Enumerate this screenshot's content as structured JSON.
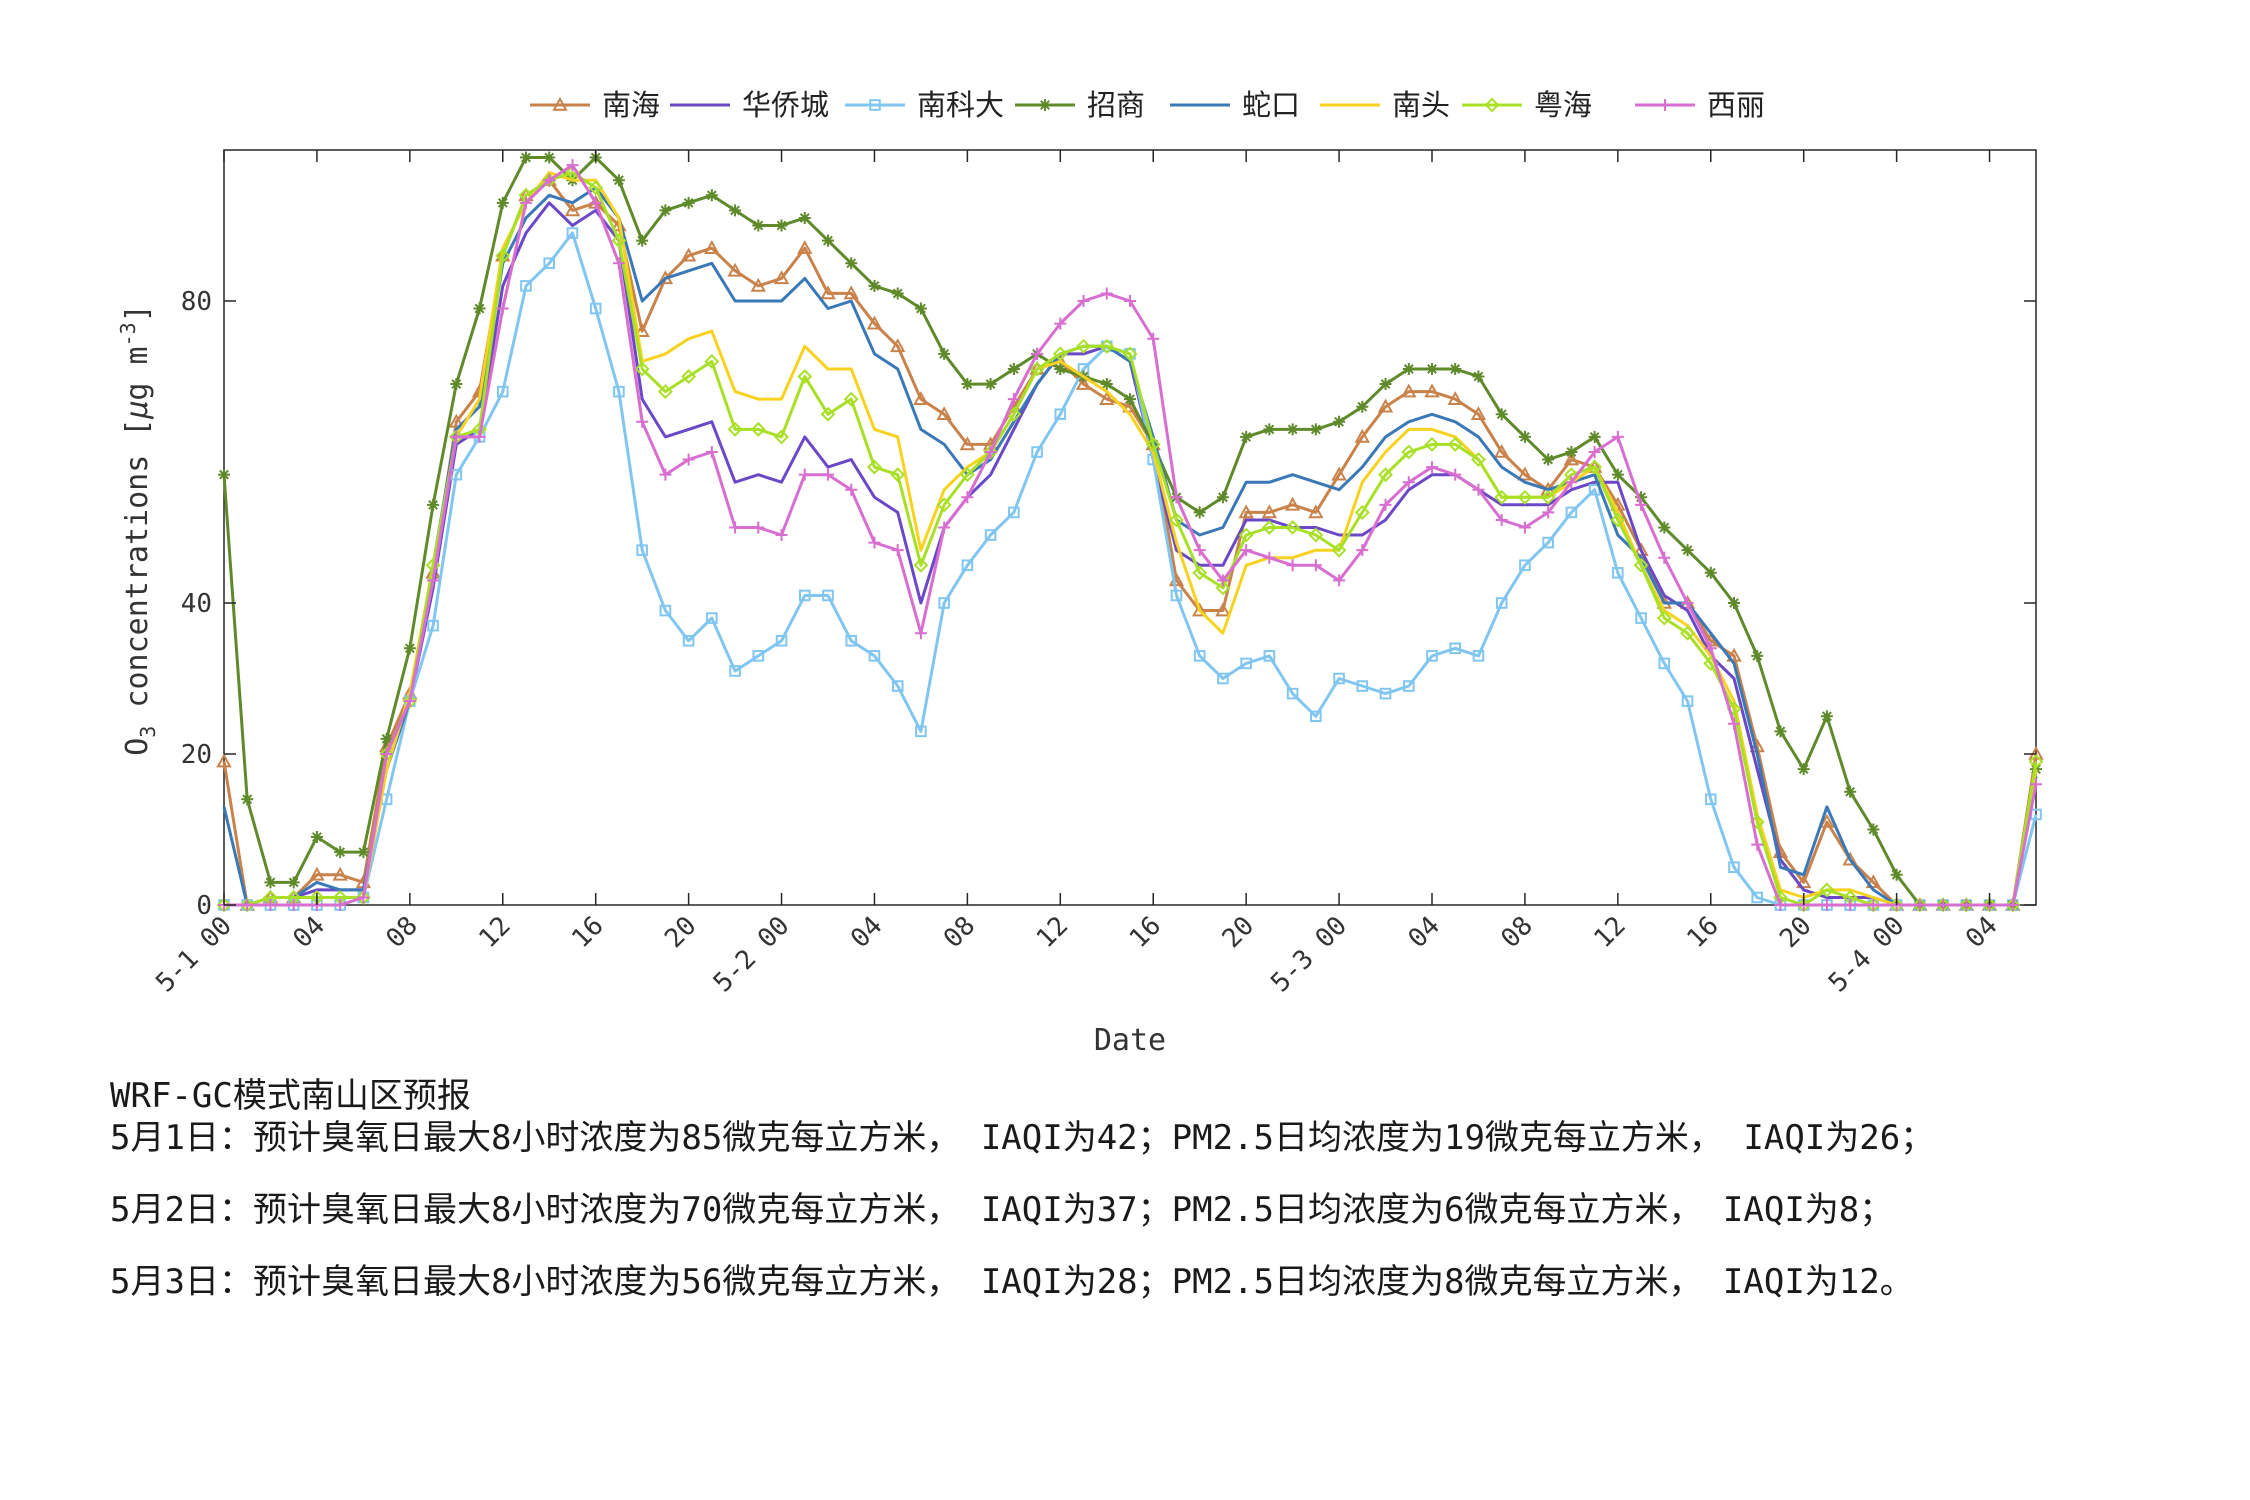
{
  "chart_data": {
    "type": "line",
    "ylabel": "O3 concentrations [μg m-3]",
    "ylabel_parts": {
      "o": "O",
      "sub3": "3",
      "text": " concentrations [",
      "mu": "μ",
      "g": "g m",
      "sup": "-3",
      "close": "]"
    },
    "xlabel": "Date",
    "ylim": [
      0,
      100
    ],
    "yticks": [
      0,
      20,
      40,
      80
    ],
    "xlim": [
      0,
      78
    ],
    "xticks": [
      {
        "x": 0,
        "label": "5-1 00"
      },
      {
        "x": 4,
        "label": "04"
      },
      {
        "x": 8,
        "label": "08"
      },
      {
        "x": 12,
        "label": "12"
      },
      {
        "x": 16,
        "label": "16"
      },
      {
        "x": 20,
        "label": "20"
      },
      {
        "x": 24,
        "label": "5-2 00"
      },
      {
        "x": 28,
        "label": "04"
      },
      {
        "x": 32,
        "label": "08"
      },
      {
        "x": 36,
        "label": "12"
      },
      {
        "x": 40,
        "label": "16"
      },
      {
        "x": 44,
        "label": "20"
      },
      {
        "x": 48,
        "label": "5-3 00"
      },
      {
        "x": 52,
        "label": "04"
      },
      {
        "x": 56,
        "label": "08"
      },
      {
        "x": 60,
        "label": "12"
      },
      {
        "x": 64,
        "label": "16"
      },
      {
        "x": 68,
        "label": "20"
      },
      {
        "x": 72,
        "label": "5-4 00"
      },
      {
        "x": 76,
        "label": "04"
      }
    ],
    "grid": false,
    "legend_position": "top-center",
    "series": [
      {
        "name": "南海",
        "color": "#c8824a",
        "marker": "triangle",
        "values": [
          19,
          0,
          1,
          1,
          4,
          4,
          3,
          21,
          28,
          44,
          64,
          68,
          86,
          94,
          96,
          92,
          93,
          90,
          76,
          83,
          86,
          87,
          84,
          82,
          83,
          87,
          81,
          81,
          77,
          74,
          67,
          65,
          61,
          61,
          66,
          71,
          72,
          69,
          67,
          66,
          61,
          43,
          39,
          39,
          52,
          52,
          53,
          52,
          57,
          62,
          66,
          68,
          68,
          67,
          65,
          60,
          57,
          55,
          59,
          58,
          53,
          47,
          40,
          40,
          35,
          33,
          21,
          7,
          3,
          11,
          6,
          3,
          0,
          0,
          0,
          0,
          0,
          0,
          20
        ]
      },
      {
        "name": "华侨城",
        "color": "#6a48c8",
        "marker": "none",
        "values": [
          0,
          0,
          1,
          1,
          2,
          2,
          2,
          18,
          27,
          42,
          61,
          63,
          82,
          89,
          93,
          90,
          92,
          88,
          67,
          62,
          63,
          64,
          56,
          57,
          56,
          62,
          58,
          59,
          54,
          52,
          40,
          50,
          54,
          57,
          63,
          69,
          73,
          73,
          74,
          72,
          59,
          47,
          45,
          45,
          51,
          51,
          50,
          50,
          49,
          49,
          51,
          55,
          57,
          57,
          55,
          53,
          53,
          53,
          55,
          56,
          56,
          47,
          41,
          39,
          33,
          30,
          18,
          6,
          2,
          1,
          1,
          1,
          0,
          0,
          0,
          0,
          0,
          0,
          17
        ]
      },
      {
        "name": "南科大",
        "color": "#80c6f0",
        "marker": "square",
        "values": [
          0,
          0,
          0,
          0,
          0,
          0,
          1,
          14,
          27,
          37,
          57,
          62,
          68,
          82,
          85,
          89,
          79,
          68,
          47,
          39,
          35,
          38,
          31,
          33,
          35,
          41,
          41,
          35,
          33,
          29,
          23,
          40,
          45,
          49,
          52,
          60,
          65,
          71,
          74,
          73,
          59,
          41,
          33,
          30,
          32,
          33,
          28,
          25,
          30,
          29,
          28,
          29,
          33,
          34,
          33,
          40,
          45,
          48,
          52,
          55,
          44,
          38,
          32,
          27,
          14,
          5,
          1,
          0,
          0,
          0,
          0,
          0,
          0,
          0,
          0,
          0,
          0,
          0,
          12
        ]
      },
      {
        "name": "招商",
        "color": "#5e8a2a",
        "marker": "star",
        "values": [
          57,
          14,
          3,
          3,
          9,
          7,
          7,
          22,
          34,
          53,
          69,
          79,
          93,
          99,
          99,
          96,
          99,
          96,
          88,
          92,
          93,
          94,
          92,
          90,
          90,
          91,
          88,
          85,
          82,
          81,
          79,
          73,
          69,
          69,
          71,
          73,
          71,
          70,
          69,
          67,
          61,
          54,
          52,
          54,
          62,
          63,
          63,
          63,
          64,
          66,
          69,
          71,
          71,
          71,
          70,
          65,
          62,
          59,
          60,
          62,
          57,
          54,
          50,
          47,
          44,
          40,
          33,
          23,
          18,
          25,
          15,
          10,
          4,
          0,
          0,
          0,
          0,
          0,
          18
        ]
      },
      {
        "name": "蛇口",
        "color": "#3a78b8",
        "marker": "none",
        "values": [
          13,
          0,
          1,
          1,
          3,
          2,
          2,
          18,
          27,
          45,
          63,
          66,
          85,
          91,
          94,
          93,
          95,
          91,
          80,
          83,
          84,
          85,
          80,
          80,
          80,
          83,
          79,
          80,
          73,
          71,
          63,
          61,
          57,
          59,
          64,
          69,
          73,
          74,
          74,
          72,
          62,
          51,
          49,
          50,
          56,
          56,
          57,
          56,
          55,
          58,
          62,
          64,
          65,
          64,
          62,
          58,
          56,
          55,
          56,
          57,
          49,
          46,
          40,
          40,
          36,
          32,
          20,
          5,
          4,
          13,
          6,
          2,
          0,
          0,
          0,
          0,
          0,
          0,
          17
        ]
      },
      {
        "name": "南头",
        "color": "#f7d21e",
        "marker": "none",
        "values": [
          0,
          0,
          1,
          1,
          1,
          1,
          1,
          18,
          28,
          45,
          62,
          67,
          87,
          93,
          97,
          96,
          96,
          91,
          72,
          73,
          75,
          76,
          68,
          67,
          67,
          74,
          71,
          71,
          63,
          62,
          47,
          55,
          58,
          60,
          65,
          71,
          72,
          70,
          68,
          65,
          60,
          48,
          39,
          36,
          45,
          46,
          46,
          47,
          47,
          56,
          60,
          63,
          63,
          62,
          59,
          54,
          54,
          54,
          56,
          58,
          52,
          45,
          39,
          37,
          33,
          27,
          12,
          2,
          1,
          2,
          2,
          1,
          0,
          0,
          0,
          0,
          0,
          0,
          18
        ]
      },
      {
        "name": "粤海",
        "color": "#a8e026",
        "marker": "diamond",
        "values": [
          0,
          0,
          1,
          1,
          1,
          1,
          1,
          20,
          27,
          45,
          62,
          63,
          86,
          94,
          96,
          97,
          95,
          88,
          71,
          68,
          70,
          72,
          63,
          63,
          62,
          70,
          65,
          67,
          58,
          57,
          45,
          53,
          57,
          60,
          65,
          71,
          73,
          74,
          74,
          73,
          61,
          51,
          44,
          42,
          49,
          50,
          50,
          49,
          47,
          52,
          57,
          60,
          61,
          61,
          59,
          54,
          54,
          54,
          57,
          58,
          51,
          45,
          38,
          36,
          32,
          26,
          11,
          1,
          0,
          2,
          1,
          0,
          0,
          0,
          0,
          0,
          0,
          0,
          19
        ]
      },
      {
        "name": "西丽",
        "color": "#d86ed0",
        "marker": "plus",
        "values": [
          0,
          0,
          0,
          0,
          0,
          0,
          1,
          20,
          27,
          43,
          62,
          62,
          79,
          93,
          96,
          98,
          93,
          85,
          64,
          57,
          59,
          60,
          50,
          50,
          49,
          57,
          57,
          55,
          48,
          47,
          36,
          50,
          54,
          60,
          67,
          73,
          77,
          80,
          81,
          80,
          75,
          54,
          47,
          43,
          47,
          46,
          45,
          45,
          43,
          47,
          53,
          56,
          58,
          57,
          55,
          51,
          50,
          52,
          56,
          60,
          62,
          53,
          46,
          40,
          34,
          24,
          8,
          0,
          0,
          0,
          0,
          0,
          0,
          0,
          0,
          0,
          0,
          0,
          16
        ]
      }
    ]
  },
  "forecast": {
    "heading": "WRF-GC模式南山区预报",
    "lines": [
      "5月1日：预计臭氧日最大8小时浓度为85微克每立方米， IAQI为42；PM2.5日均浓度为19微克每立方米， IAQI为26；",
      "5月2日：预计臭氧日最大8小时浓度为70微克每立方米， IAQI为37；PM2.5日均浓度为6微克每立方米， IAQI为8；",
      "5月3日：预计臭氧日最大8小时浓度为56微克每立方米， IAQI为28；PM2.5日均浓度为8微克每立方米， IAQI为12。"
    ]
  }
}
